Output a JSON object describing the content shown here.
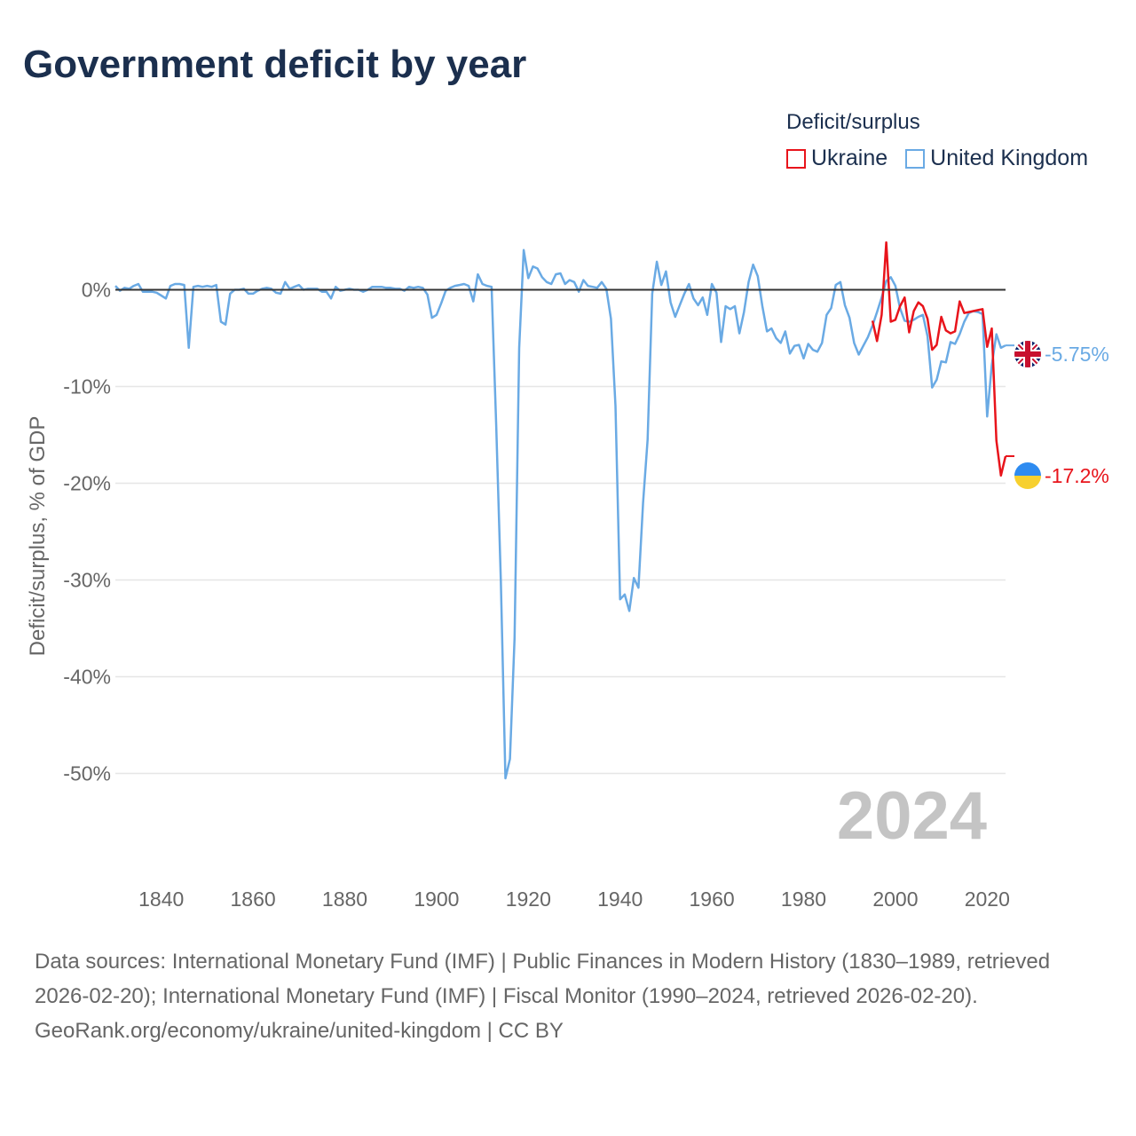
{
  "title": "Government deficit by year",
  "legend": {
    "title": "Deficit/surplus",
    "items": [
      {
        "label": "Ukraine",
        "color": "#e8141b"
      },
      {
        "label": "United Kingdom",
        "color": "#6aaae4"
      }
    ]
  },
  "footer": {
    "sources": "Data sources: International Monetary Fund (IMF) | Public Finances in Modern History (1830–1989, retrieved 2026-02-20); International Monetary Fund (IMF) | Fiscal Monitor (1990–2024, retrieved 2026-02-20).",
    "credit": "GeoRank.org/economy/ukraine/united-kingdom | CC BY"
  },
  "chart_data": {
    "type": "line",
    "title": "Government deficit by year",
    "xlabel": "",
    "ylabel": "Deficit/surplus, % of GDP",
    "xlim": [
      1830,
      2024
    ],
    "ylim": [
      -55,
      5
    ],
    "xticks": [
      1840,
      1860,
      1880,
      1900,
      1920,
      1940,
      1960,
      1980,
      2000,
      2020
    ],
    "xtick_labels": [
      "1840",
      "1860",
      "1880",
      "1900",
      "1920",
      "1940",
      "1960",
      "1980",
      "2000",
      "2020"
    ],
    "yticks": [
      0,
      -10,
      -20,
      -30,
      -40,
      -50
    ],
    "ytick_labels": [
      "0%",
      "-10%",
      "-20%",
      "-30%",
      "-40%",
      "-50%"
    ],
    "year_label": "2024",
    "series": [
      {
        "name": "Ukraine",
        "color": "#e8141b",
        "end_label": "-17.2%",
        "x": [
          1995,
          1996,
          1997,
          1998,
          1999,
          2000,
          2001,
          2002,
          2003,
          2004,
          2005,
          2006,
          2007,
          2008,
          2009,
          2010,
          2011,
          2012,
          2013,
          2014,
          2015,
          2016,
          2017,
          2018,
          2019,
          2020,
          2021,
          2022,
          2023,
          2024
        ],
        "values": [
          -3.2,
          -5.3,
          -2.6,
          4.9,
          -3.3,
          -3.1,
          -1.7,
          -0.8,
          -4.4,
          -2.2,
          -1.3,
          -1.7,
          -3.0,
          -6.2,
          -5.7,
          -2.8,
          -4.2,
          -4.5,
          -4.3,
          -1.2,
          -2.4,
          -2.3,
          -2.2,
          -2.1,
          -2.0,
          -5.9,
          -4.0,
          -15.6,
          -19.2,
          -17.2
        ]
      },
      {
        "name": "United Kingdom",
        "color": "#6aaae4",
        "end_label": "-5.75%",
        "x": [
          1830,
          1831,
          1832,
          1833,
          1834,
          1835,
          1836,
          1837,
          1838,
          1839,
          1840,
          1841,
          1842,
          1843,
          1844,
          1845,
          1846,
          1847,
          1848,
          1849,
          1850,
          1851,
          1852,
          1853,
          1854,
          1855,
          1856,
          1857,
          1858,
          1859,
          1860,
          1861,
          1862,
          1863,
          1864,
          1865,
          1866,
          1867,
          1868,
          1869,
          1870,
          1871,
          1872,
          1873,
          1874,
          1875,
          1876,
          1877,
          1878,
          1879,
          1880,
          1881,
          1882,
          1883,
          1884,
          1885,
          1886,
          1887,
          1888,
          1889,
          1890,
          1891,
          1892,
          1893,
          1894,
          1895,
          1896,
          1897,
          1898,
          1899,
          1900,
          1901,
          1902,
          1903,
          1904,
          1905,
          1906,
          1907,
          1908,
          1909,
          1910,
          1911,
          1912,
          1913,
          1914,
          1915,
          1916,
          1917,
          1918,
          1919,
          1920,
          1921,
          1922,
          1923,
          1924,
          1925,
          1926,
          1927,
          1928,
          1929,
          1930,
          1931,
          1932,
          1933,
          1934,
          1935,
          1936,
          1937,
          1938,
          1939,
          1940,
          1941,
          1942,
          1943,
          1944,
          1945,
          1946,
          1947,
          1948,
          1949,
          1950,
          1951,
          1952,
          1953,
          1954,
          1955,
          1956,
          1957,
          1958,
          1959,
          1960,
          1961,
          1962,
          1963,
          1964,
          1965,
          1966,
          1967,
          1968,
          1969,
          1970,
          1971,
          1972,
          1973,
          1974,
          1975,
          1976,
          1977,
          1978,
          1979,
          1980,
          1981,
          1982,
          1983,
          1984,
          1985,
          1986,
          1987,
          1988,
          1989,
          1990,
          1991,
          1992,
          1993,
          1994,
          1995,
          1996,
          1997,
          1998,
          1999,
          2000,
          2001,
          2002,
          2003,
          2004,
          2005,
          2006,
          2007,
          2008,
          2009,
          2010,
          2011,
          2012,
          2013,
          2014,
          2015,
          2016,
          2017,
          2018,
          2019,
          2020,
          2021,
          2022,
          2023,
          2024
        ],
        "values": [
          0.4,
          -0.1,
          0.2,
          0.1,
          0.4,
          0.6,
          -0.2,
          -0.2,
          -0.2,
          -0.3,
          -0.6,
          -0.9,
          0.4,
          0.6,
          0.6,
          0.5,
          -6.0,
          0.3,
          0.4,
          0.3,
          0.4,
          0.3,
          0.5,
          -3.3,
          -3.6,
          -0.4,
          0.0,
          0.0,
          0.1,
          -0.4,
          -0.4,
          -0.1,
          0.1,
          0.2,
          0.1,
          -0.3,
          -0.4,
          0.8,
          0.1,
          0.3,
          0.5,
          0.0,
          0.1,
          0.1,
          0.1,
          -0.2,
          -0.2,
          -0.9,
          0.3,
          -0.1,
          0.0,
          0.1,
          0.0,
          0.0,
          -0.2,
          0.0,
          0.3,
          0.3,
          0.3,
          0.2,
          0.2,
          0.1,
          0.1,
          -0.1,
          0.3,
          0.2,
          0.3,
          0.2,
          -0.5,
          -2.9,
          -2.6,
          -1.4,
          -0.1,
          0.2,
          0.4,
          0.5,
          0.6,
          0.4,
          -1.2,
          1.6,
          0.6,
          0.4,
          0.3,
          -14.0,
          -30.0,
          -50.5,
          -48.5,
          -36.0,
          -6.0,
          4.1,
          1.2,
          2.4,
          2.2,
          1.3,
          0.8,
          0.6,
          1.6,
          1.7,
          0.6,
          1.0,
          0.8,
          -0.2,
          1.0,
          0.4,
          0.3,
          0.2,
          0.8,
          0.1,
          -3.0,
          -12.0,
          -32.0,
          -31.5,
          -33.2,
          -29.8,
          -30.8,
          -22.0,
          -15.5,
          -0.4,
          2.9,
          0.5,
          1.9,
          -1.3,
          -2.8,
          -1.6,
          -0.4,
          0.6,
          -0.9,
          -1.6,
          -0.8,
          -2.6,
          0.6,
          -0.3,
          -5.4,
          -1.7,
          -2.0,
          -1.7,
          -4.5,
          -2.3,
          0.8,
          2.6,
          1.4,
          -1.7,
          -4.3,
          -4.0,
          -5.0,
          -5.5,
          -4.3,
          -6.6,
          -5.8,
          -5.7,
          -7.1,
          -5.6,
          -6.2,
          -6.4,
          -5.5,
          -2.6,
          -1.9,
          0.5,
          0.8,
          -1.6,
          -2.9,
          -5.5,
          -6.7,
          -5.8,
          -4.9,
          -3.7,
          -2.3,
          -0.8,
          0.9,
          1.3,
          0.4,
          -1.9,
          -3.2,
          -3.3,
          -3.1,
          -2.8,
          -2.6,
          -4.8,
          -10.1,
          -9.3,
          -7.4,
          -7.5,
          -5.4,
          -5.6,
          -4.6,
          -3.3,
          -2.4,
          -2.2,
          -2.3,
          -2.5,
          -13.1,
          -7.8,
          -4.6,
          -6.0,
          -5.75
        ]
      }
    ]
  }
}
